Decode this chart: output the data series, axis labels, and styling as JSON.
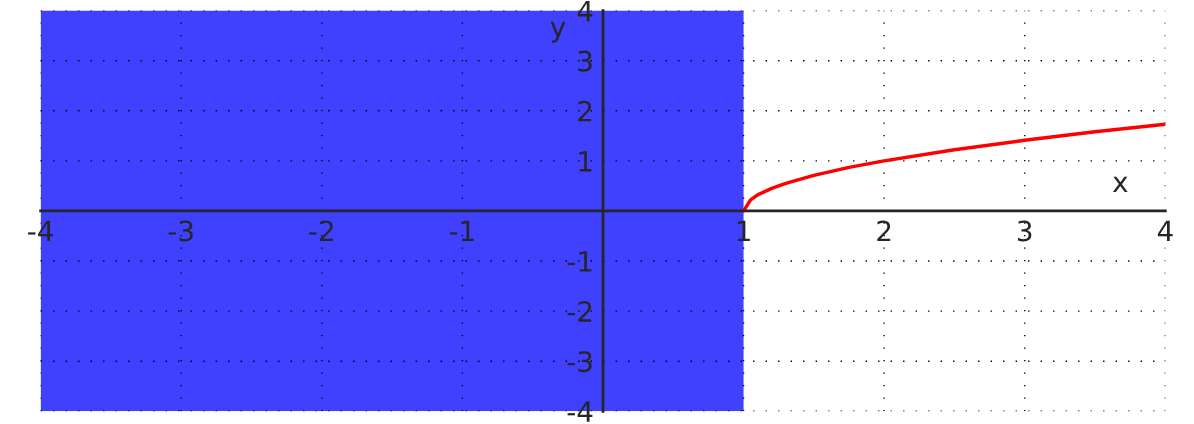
{
  "chart_data": {
    "type": "line",
    "xlabel": "x",
    "ylabel": "y",
    "x": [
      1,
      1.05,
      1.1,
      1.2,
      1.3,
      1.5,
      1.75,
      2,
      2.5,
      3,
      3.5,
      4
    ],
    "series": [
      {
        "color": "#ff0000",
        "values": [
          0,
          0.22,
          0.32,
          0.45,
          0.55,
          0.71,
          0.87,
          1,
          1.22,
          1.41,
          1.58,
          1.73
        ]
      }
    ],
    "xlim": [
      -4,
      4
    ],
    "ylim": [
      -4,
      4
    ],
    "xticks": [
      -4,
      -3,
      -2,
      -1,
      {
        "value": 0,
        "label": null
      },
      1,
      2,
      3,
      4
    ],
    "yticks": [
      -4,
      -3,
      -2,
      -1,
      {
        "value": 0,
        "label": null
      },
      1,
      2,
      3,
      4
    ],
    "bands": [
      {
        "axis": "x",
        "from": -4,
        "to": 1,
        "color": "#0000ff"
      }
    ],
    "grid": true,
    "legend": false,
    "marker": "none",
    "line_style": "solid"
  }
}
